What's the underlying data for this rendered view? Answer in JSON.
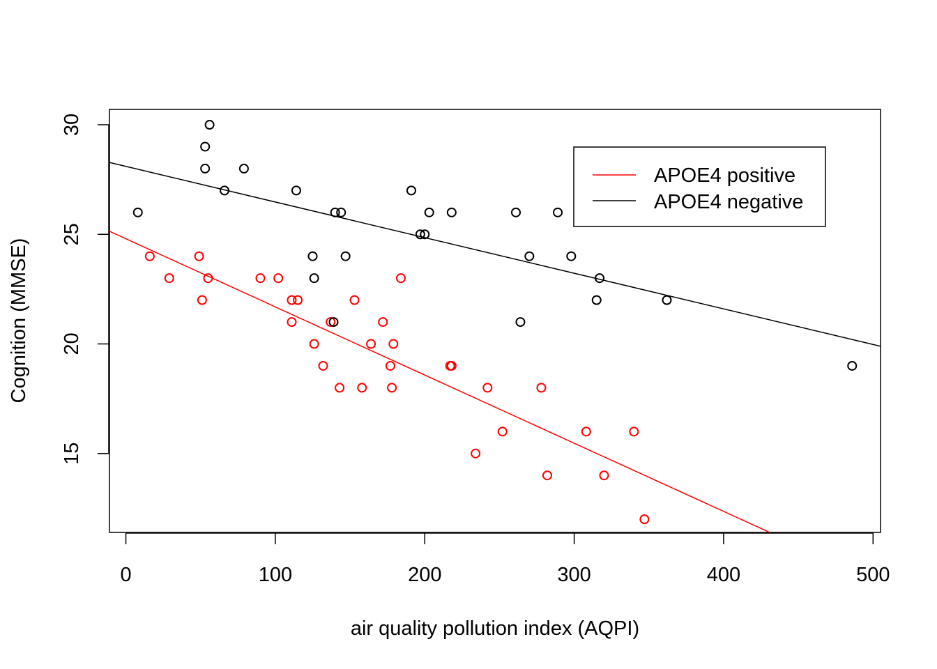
{
  "chart_data": {
    "type": "scatter",
    "title": "",
    "xlabel": "air quality pollution index (AQPI)",
    "ylabel": "Cognition (MMSE)",
    "xlim": [
      -11,
      505
    ],
    "ylim": [
      11.4,
      30.7
    ],
    "xticks": [
      0,
      100,
      200,
      300,
      400,
      500
    ],
    "yticks": [
      15,
      20,
      25,
      30
    ],
    "grid": false,
    "legend_position": "top-right",
    "series": [
      {
        "name": "APOE4 positive",
        "color": "#ff0000",
        "points": [
          [
            16,
            24
          ],
          [
            29,
            23
          ],
          [
            49,
            24
          ],
          [
            51,
            22
          ],
          [
            55,
            23
          ],
          [
            90,
            23
          ],
          [
            102,
            23
          ],
          [
            111,
            22
          ],
          [
            111,
            21
          ],
          [
            115,
            22
          ],
          [
            126,
            20
          ],
          [
            132,
            19
          ],
          [
            137,
            21
          ],
          [
            143,
            18
          ],
          [
            153,
            22
          ],
          [
            158,
            18
          ],
          [
            164,
            20
          ],
          [
            172,
            21
          ],
          [
            177,
            19
          ],
          [
            178,
            18
          ],
          [
            179,
            20
          ],
          [
            184,
            23
          ],
          [
            217,
            19
          ],
          [
            218,
            19
          ],
          [
            234,
            15
          ],
          [
            242,
            18
          ],
          [
            252,
            16
          ],
          [
            278,
            18
          ],
          [
            282,
            14
          ],
          [
            308,
            16
          ],
          [
            320,
            14
          ],
          [
            340,
            16
          ],
          [
            347,
            12
          ]
        ],
        "fit": {
          "intercept": 24.8,
          "slope": -0.0311
        }
      },
      {
        "name": "APOE4 negative",
        "color": "#000000",
        "points": [
          [
            8,
            26
          ],
          [
            53,
            28
          ],
          [
            53,
            29
          ],
          [
            56,
            30
          ],
          [
            66,
            27
          ],
          [
            79,
            28
          ],
          [
            114,
            27
          ],
          [
            125,
            24
          ],
          [
            126,
            23
          ],
          [
            139,
            21
          ],
          [
            140,
            26
          ],
          [
            144,
            26
          ],
          [
            147,
            24
          ],
          [
            191,
            27
          ],
          [
            197,
            25
          ],
          [
            200,
            25
          ],
          [
            203,
            26
          ],
          [
            218,
            26
          ],
          [
            261,
            26
          ],
          [
            264,
            21
          ],
          [
            270,
            24
          ],
          [
            289,
            26
          ],
          [
            298,
            24
          ],
          [
            315,
            22
          ],
          [
            317,
            23
          ],
          [
            362,
            22
          ],
          [
            486,
            19
          ]
        ],
        "fit": {
          "intercept": 28.1,
          "slope": -0.01625
        }
      }
    ]
  }
}
